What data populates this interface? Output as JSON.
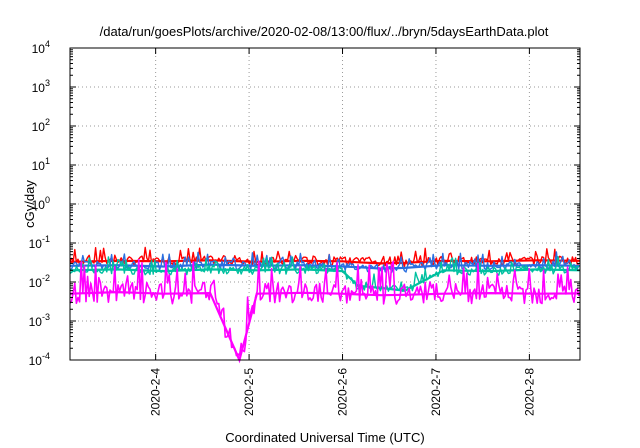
{
  "chart_data": {
    "type": "line",
    "title": "/data/run/goesPlots/archive/2020-02-08/13:00/flux/../bryn/5daysEarthData.plot",
    "xlabel": "Coordinated Universal Time (UTC)",
    "ylabel": "cGy/day",
    "yscale": "log",
    "ylim": [
      0.0001,
      10000
    ],
    "xlim": [
      "2020-02-03T02:00",
      "2020-02-08T13:00"
    ],
    "grid": true,
    "x_ticks": [
      {
        "date": "2020-02-04",
        "label": "2020-2-4"
      },
      {
        "date": "2020-02-05",
        "label": "2020-2-5"
      },
      {
        "date": "2020-02-06",
        "label": "2020-2-6"
      },
      {
        "date": "2020-02-07",
        "label": "2020-2-7"
      },
      {
        "date": "2020-02-08",
        "label": "2020-2-8"
      }
    ],
    "y_ticks": [
      {
        "value": 0.0001,
        "base": "10",
        "exp": "-4"
      },
      {
        "value": 0.001,
        "base": "10",
        "exp": "-3"
      },
      {
        "value": 0.01,
        "base": "10",
        "exp": "-2"
      },
      {
        "value": 0.1,
        "base": "10",
        "exp": "-1"
      },
      {
        "value": 1,
        "base": "10",
        "exp": "0"
      },
      {
        "value": 10,
        "base": "10",
        "exp": "1"
      },
      {
        "value": 100,
        "base": "10",
        "exp": "2"
      },
      {
        "value": 1000,
        "base": "10",
        "exp": "3"
      },
      {
        "value": 10000,
        "base": "10",
        "exp": "4"
      }
    ],
    "series": [
      {
        "color": "#ff0000",
        "x": [
          "2020-02-03T02:00",
          "2020-02-03T14:00",
          "2020-02-04T02:00",
          "2020-02-04T14:00",
          "2020-02-05T02:00",
          "2020-02-05T14:00",
          "2020-02-06T00:00",
          "2020-02-06T04:00",
          "2020-02-06T10:00",
          "2020-02-06T16:00",
          "2020-02-07T02:00",
          "2020-02-07T14:00",
          "2020-02-08T02:00",
          "2020-02-08T13:00"
        ],
        "y": [
          0.033,
          0.035,
          0.034,
          0.036,
          0.033,
          0.035,
          0.034,
          0.032,
          0.03,
          0.031,
          0.035,
          0.034,
          0.036,
          0.035
        ]
      },
      {
        "color": "#2a6fe0",
        "x": [
          "2020-02-03T02:00",
          "2020-02-03T14:00",
          "2020-02-04T02:00",
          "2020-02-04T14:00",
          "2020-02-05T02:00",
          "2020-02-05T14:00",
          "2020-02-06T00:00",
          "2020-02-06T04:00",
          "2020-02-06T10:00",
          "2020-02-06T16:00",
          "2020-02-07T02:00",
          "2020-02-07T14:00",
          "2020-02-08T02:00",
          "2020-02-08T13:00"
        ],
        "y": [
          0.026,
          0.027,
          0.025,
          0.028,
          0.026,
          0.027,
          0.025,
          0.024,
          0.022,
          0.023,
          0.027,
          0.026,
          0.027,
          0.026
        ]
      },
      {
        "color": "#00c0a0",
        "x": [
          "2020-02-03T02:00",
          "2020-02-03T14:00",
          "2020-02-04T02:00",
          "2020-02-04T14:00",
          "2020-02-05T02:00",
          "2020-02-05T14:00",
          "2020-02-06T00:00",
          "2020-02-06T04:00",
          "2020-02-06T10:00",
          "2020-02-06T16:00",
          "2020-02-07T02:00",
          "2020-02-07T14:00",
          "2020-02-08T02:00",
          "2020-02-08T13:00"
        ],
        "y": [
          0.02,
          0.021,
          0.019,
          0.021,
          0.02,
          0.021,
          0.019,
          0.008,
          0.007,
          0.006,
          0.02,
          0.019,
          0.021,
          0.02
        ]
      },
      {
        "color": "#ff00ff",
        "x": [
          "2020-02-03T02:00",
          "2020-02-03T14:00",
          "2020-02-04T02:00",
          "2020-02-04T14:00",
          "2020-02-04T21:30",
          "2020-02-05T02:00",
          "2020-02-05T14:00",
          "2020-02-06T00:00",
          "2020-02-06T04:00",
          "2020-02-06T10:00",
          "2020-02-06T16:00",
          "2020-02-07T02:00",
          "2020-02-07T14:00",
          "2020-02-08T02:00",
          "2020-02-08T13:00"
        ],
        "y": [
          0.005,
          0.0055,
          0.005,
          0.0052,
          0.0001,
          0.005,
          0.0053,
          0.005,
          0.0048,
          0.0046,
          0.0047,
          0.005,
          0.0052,
          0.005,
          0.0051
        ]
      }
    ]
  }
}
